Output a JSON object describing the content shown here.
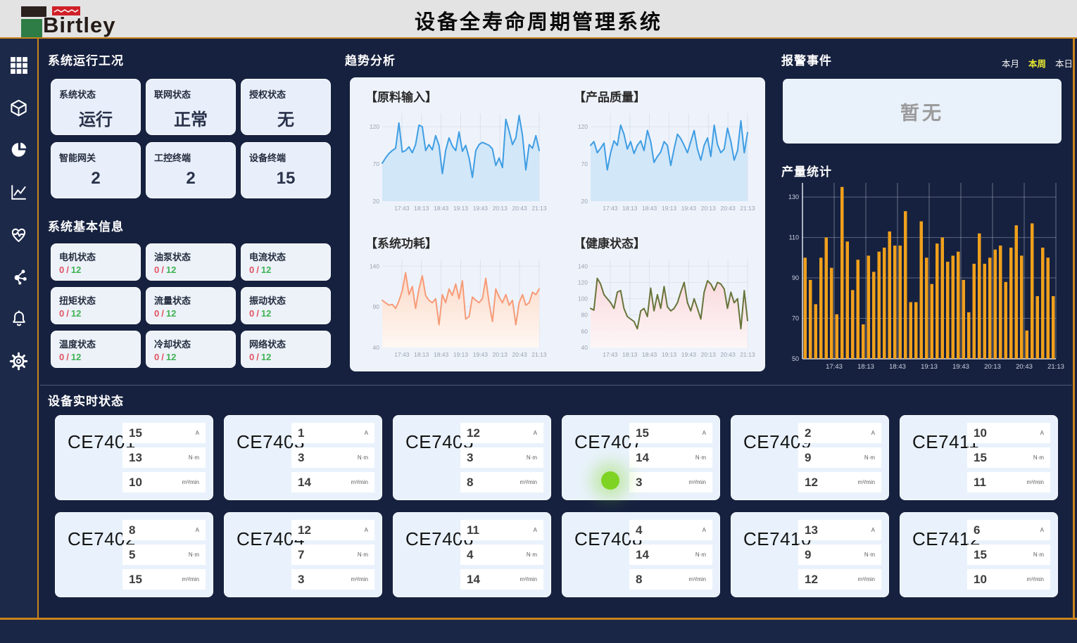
{
  "header": {
    "logo_text": "Birtley",
    "title": "设备全寿命周期管理系统"
  },
  "sidebar": {
    "icons": [
      "grid-icon",
      "cube-icon",
      "pie-chart-icon",
      "line-chart-icon",
      "heart-pulse-icon",
      "molecule-icon",
      "bell-icon",
      "gear-icon"
    ]
  },
  "system_status": {
    "title": "系统运行工况",
    "cards": [
      {
        "label": "系统状态",
        "value": "运行"
      },
      {
        "label": "联网状态",
        "value": "正常"
      },
      {
        "label": "授权状态",
        "value": "无"
      },
      {
        "label": "智能网关",
        "value": "2"
      },
      {
        "label": "工控终端",
        "value": "2"
      },
      {
        "label": "设备终端",
        "value": "15"
      }
    ]
  },
  "basic_info": {
    "title": "系统基本信息",
    "separator": "/",
    "cards": [
      {
        "label": "电机状态",
        "current": "0",
        "total": "12"
      },
      {
        "label": "油泵状态",
        "current": "0",
        "total": "12"
      },
      {
        "label": "电流状态",
        "current": "0",
        "total": "12"
      },
      {
        "label": "扭矩状态",
        "current": "0",
        "total": "12"
      },
      {
        "label": "流量状态",
        "current": "0",
        "total": "12"
      },
      {
        "label": "振动状态",
        "current": "0",
        "total": "12"
      },
      {
        "label": "温度状态",
        "current": "0",
        "total": "12"
      },
      {
        "label": "冷却状态",
        "current": "0",
        "total": "12"
      },
      {
        "label": "网络状态",
        "current": "0",
        "total": "12"
      }
    ]
  },
  "trend": {
    "title": "趋势分析"
  },
  "alarm": {
    "title": "报警事件",
    "tabs": [
      {
        "label": "本月",
        "active": false
      },
      {
        "label": "本周",
        "active": true
      },
      {
        "label": "本日",
        "active": false
      }
    ],
    "empty_text": "暂无"
  },
  "production": {
    "title": "产量统计"
  },
  "devices": {
    "title": "设备实时状态",
    "units": [
      "A",
      "N·m",
      "m³/min"
    ],
    "cards": [
      {
        "name": "CE7401",
        "values": [
          "15",
          "13",
          "10"
        ],
        "indicator": false
      },
      {
        "name": "CE7403",
        "values": [
          "1",
          "3",
          "14"
        ],
        "indicator": false
      },
      {
        "name": "CE7405",
        "values": [
          "12",
          "3",
          "8"
        ],
        "indicator": false
      },
      {
        "name": "CE7407",
        "values": [
          "15",
          "14",
          "3"
        ],
        "indicator": true
      },
      {
        "name": "CE7409",
        "values": [
          "2",
          "9",
          "12"
        ],
        "indicator": false
      },
      {
        "name": "CE7411",
        "values": [
          "10",
          "15",
          "11"
        ],
        "indicator": false
      },
      {
        "name": "CE7402",
        "values": [
          "8",
          "5",
          "15"
        ],
        "indicator": false
      },
      {
        "name": "CE7404",
        "values": [
          "12",
          "7",
          "3"
        ],
        "indicator": false
      },
      {
        "name": "CE7406",
        "values": [
          "11",
          "4",
          "14"
        ],
        "indicator": false
      },
      {
        "name": "CE7408",
        "values": [
          "4",
          "14",
          "8"
        ],
        "indicator": false
      },
      {
        "name": "CE7410",
        "values": [
          "13",
          "9",
          "12"
        ],
        "indicator": false
      },
      {
        "name": "CE7412",
        "values": [
          "6",
          "15",
          "10"
        ],
        "indicator": false
      }
    ]
  },
  "colors": {
    "accent_gold": "#c9841c",
    "bar_orange": "#f0a01c",
    "line_blue": "#3f9de3",
    "line_orange": "#f79b77",
    "line_olive": "#67743a",
    "alert_red": "#e25563",
    "ok_green": "#3eb253",
    "tab_active_yellow": "#e8e830"
  },
  "chart_data": [
    {
      "id": "raw_material",
      "type": "line",
      "title": "【原料输入】",
      "color": "#3f9de3",
      "fill": "solid",
      "fill_color": "#d2e7f8",
      "ylim": [
        20,
        138
      ],
      "yticks": [
        20,
        70,
        120
      ],
      "x_labels": [
        "17:43",
        "18:13",
        "18:43",
        "19:13",
        "19:43",
        "20:13",
        "20:43",
        "21:13"
      ],
      "values": [
        71,
        78,
        84,
        88,
        91,
        125,
        86,
        88,
        93,
        85,
        96,
        122,
        120,
        88,
        96,
        89,
        108,
        95,
        57,
        88,
        105,
        94,
        88,
        113,
        87,
        95,
        78,
        52,
        88,
        96,
        99,
        97,
        95,
        90,
        68,
        78,
        65,
        130,
        114,
        96,
        105,
        135,
        108,
        62,
        96,
        91,
        108,
        88
      ]
    },
    {
      "id": "product_quality",
      "type": "line",
      "title": "【产品质量】",
      "color": "#3f9de3",
      "fill": "solid",
      "fill_color": "#d2e7f8",
      "ylim": [
        20,
        138
      ],
      "yticks": [
        20,
        70,
        120
      ],
      "x_labels": [
        "17:43",
        "18:13",
        "18:43",
        "19:13",
        "19:43",
        "20:13",
        "20:43",
        "21:13"
      ],
      "values": [
        95,
        100,
        85,
        91,
        98,
        62,
        85,
        101,
        95,
        122,
        110,
        90,
        100,
        84,
        95,
        101,
        88,
        115,
        100,
        72,
        80,
        86,
        100,
        95,
        68,
        90,
        110,
        104,
        95,
        85,
        100,
        115,
        90,
        75,
        95,
        105,
        80,
        122,
        96,
        85,
        90,
        118,
        100,
        75,
        88,
        128,
        85,
        112
      ]
    },
    {
      "id": "power",
      "type": "line",
      "title": "【系统功耗】",
      "color": "#f79b77",
      "fill": "gradient",
      "fill_from": "#fbd9c8",
      "fill_to": "#fff8f3",
      "ylim": [
        40,
        148
      ],
      "yticks": [
        40,
        90,
        140
      ],
      "x_labels": [
        "17:43",
        "18:13",
        "18:43",
        "19:13",
        "19:43",
        "20:13",
        "20:43",
        "21:13"
      ],
      "values": [
        98,
        95,
        92,
        93,
        88,
        97,
        110,
        132,
        105,
        115,
        88,
        112,
        128,
        104,
        98,
        95,
        100,
        68,
        105,
        95,
        112,
        104,
        118,
        100,
        122,
        75,
        78,
        102,
        98,
        95,
        100,
        125,
        95,
        72,
        112,
        102,
        95,
        105,
        92,
        98,
        68,
        95,
        105,
        92,
        95,
        108,
        105,
        112
      ]
    },
    {
      "id": "health",
      "type": "line",
      "title": "【健康状态】",
      "color": "#67743a",
      "fill": "gradient",
      "fill_from": "#f9d9dd",
      "fill_to": "#fdf6f6",
      "ylim": [
        40,
        148
      ],
      "yticks": [
        40,
        60,
        80,
        100,
        120,
        140
      ],
      "x_labels": [
        "17:43",
        "18:13",
        "18:43",
        "19:13",
        "19:43",
        "20:13",
        "20:43",
        "21:13"
      ],
      "values": [
        88,
        86,
        125,
        118,
        105,
        100,
        95,
        88,
        108,
        110,
        88,
        78,
        75,
        72,
        63,
        85,
        88,
        78,
        113,
        85,
        105,
        88,
        115,
        90,
        85,
        88,
        95,
        108,
        120,
        95,
        85,
        100,
        88,
        75,
        108,
        122,
        118,
        110,
        120,
        118,
        112,
        88,
        108,
        95,
        100,
        63,
        110,
        73
      ]
    },
    {
      "id": "production",
      "type": "bar",
      "title": "产量统计",
      "color": "#f0a01c",
      "ylim": [
        50,
        137
      ],
      "yticks": [
        50,
        70,
        90,
        110,
        130
      ],
      "x_labels": [
        "17:43",
        "18:13",
        "18:43",
        "19:13",
        "19:43",
        "20:13",
        "20:43",
        "21:13"
      ],
      "values": [
        100,
        89,
        77,
        100,
        110,
        95,
        72,
        135,
        108,
        84,
        99,
        67,
        101,
        93,
        103,
        105,
        113,
        106,
        106,
        123,
        78,
        78,
        118,
        100,
        87,
        107,
        110,
        98,
        101,
        103,
        89,
        73,
        97,
        112,
        97,
        100,
        104,
        106,
        88,
        105,
        116,
        101,
        64,
        117,
        81,
        105,
        100,
        81
      ]
    }
  ]
}
